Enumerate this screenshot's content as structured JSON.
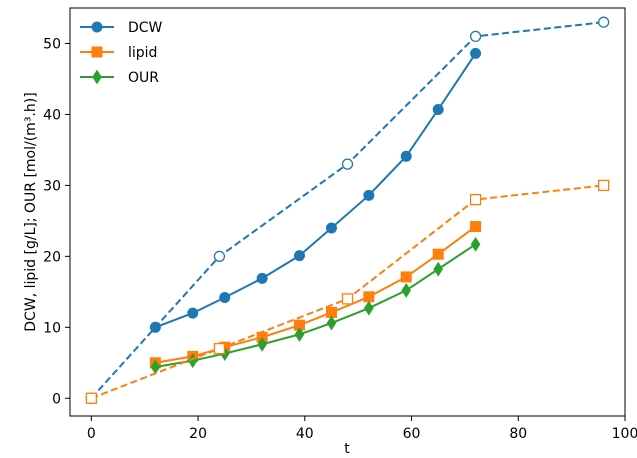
{
  "chart_data": {
    "type": "line",
    "title": "",
    "xlabel": "t",
    "ylabel": "DCW, lipid [g/L]; OUR [mol/(m³.h)]",
    "xlim": [
      -4,
      100
    ],
    "ylim": [
      -2.5,
      55
    ],
    "xticks": [
      0,
      20,
      40,
      60,
      80,
      100
    ],
    "yticks": [
      0,
      10,
      20,
      30,
      40,
      50
    ],
    "grid": false,
    "legend_position": "upper-left",
    "colors": {
      "blue": "#1f77b4",
      "orange": "#ff7f0e",
      "green": "#2ca02c"
    },
    "series": [
      {
        "name": "DCW",
        "style": "solid",
        "marker": "circle",
        "filled": true,
        "color": "#1f77b4",
        "legend": true,
        "x": [
          12,
          19,
          25,
          32,
          39,
          45,
          52,
          59,
          65,
          72
        ],
        "y": [
          10,
          12,
          14.2,
          16.9,
          20.1,
          24,
          28.6,
          34.1,
          40.7,
          48.6
        ]
      },
      {
        "name": "lipid",
        "style": "solid",
        "marker": "square",
        "filled": true,
        "color": "#ff7f0e",
        "legend": true,
        "x": [
          12,
          19,
          25,
          32,
          39,
          45,
          52,
          59,
          65,
          72
        ],
        "y": [
          5,
          5.9,
          7.2,
          8.6,
          10.3,
          12.1,
          14.3,
          17.1,
          20.3,
          24.2
        ]
      },
      {
        "name": "OUR",
        "style": "solid",
        "marker": "diamond",
        "filled": true,
        "color": "#2ca02c",
        "legend": true,
        "x": [
          12,
          19,
          25,
          32,
          39,
          45,
          52,
          59,
          65,
          72
        ],
        "y": [
          4.4,
          5.3,
          6.3,
          7.6,
          9,
          10.6,
          12.7,
          15.2,
          18.2,
          21.7
        ]
      },
      {
        "style": "dashed",
        "marker": "circle",
        "filled": false,
        "color": "#1f77b4",
        "legend": false,
        "x": [
          0,
          24,
          48,
          72,
          96
        ],
        "y": [
          0,
          20,
          33,
          51,
          53
        ]
      },
      {
        "style": "dashed",
        "marker": "square",
        "filled": false,
        "color": "#ff7f0e",
        "legend": false,
        "x": [
          0,
          24,
          48,
          72,
          96
        ],
        "y": [
          0,
          7,
          14,
          28,
          30
        ]
      }
    ]
  }
}
